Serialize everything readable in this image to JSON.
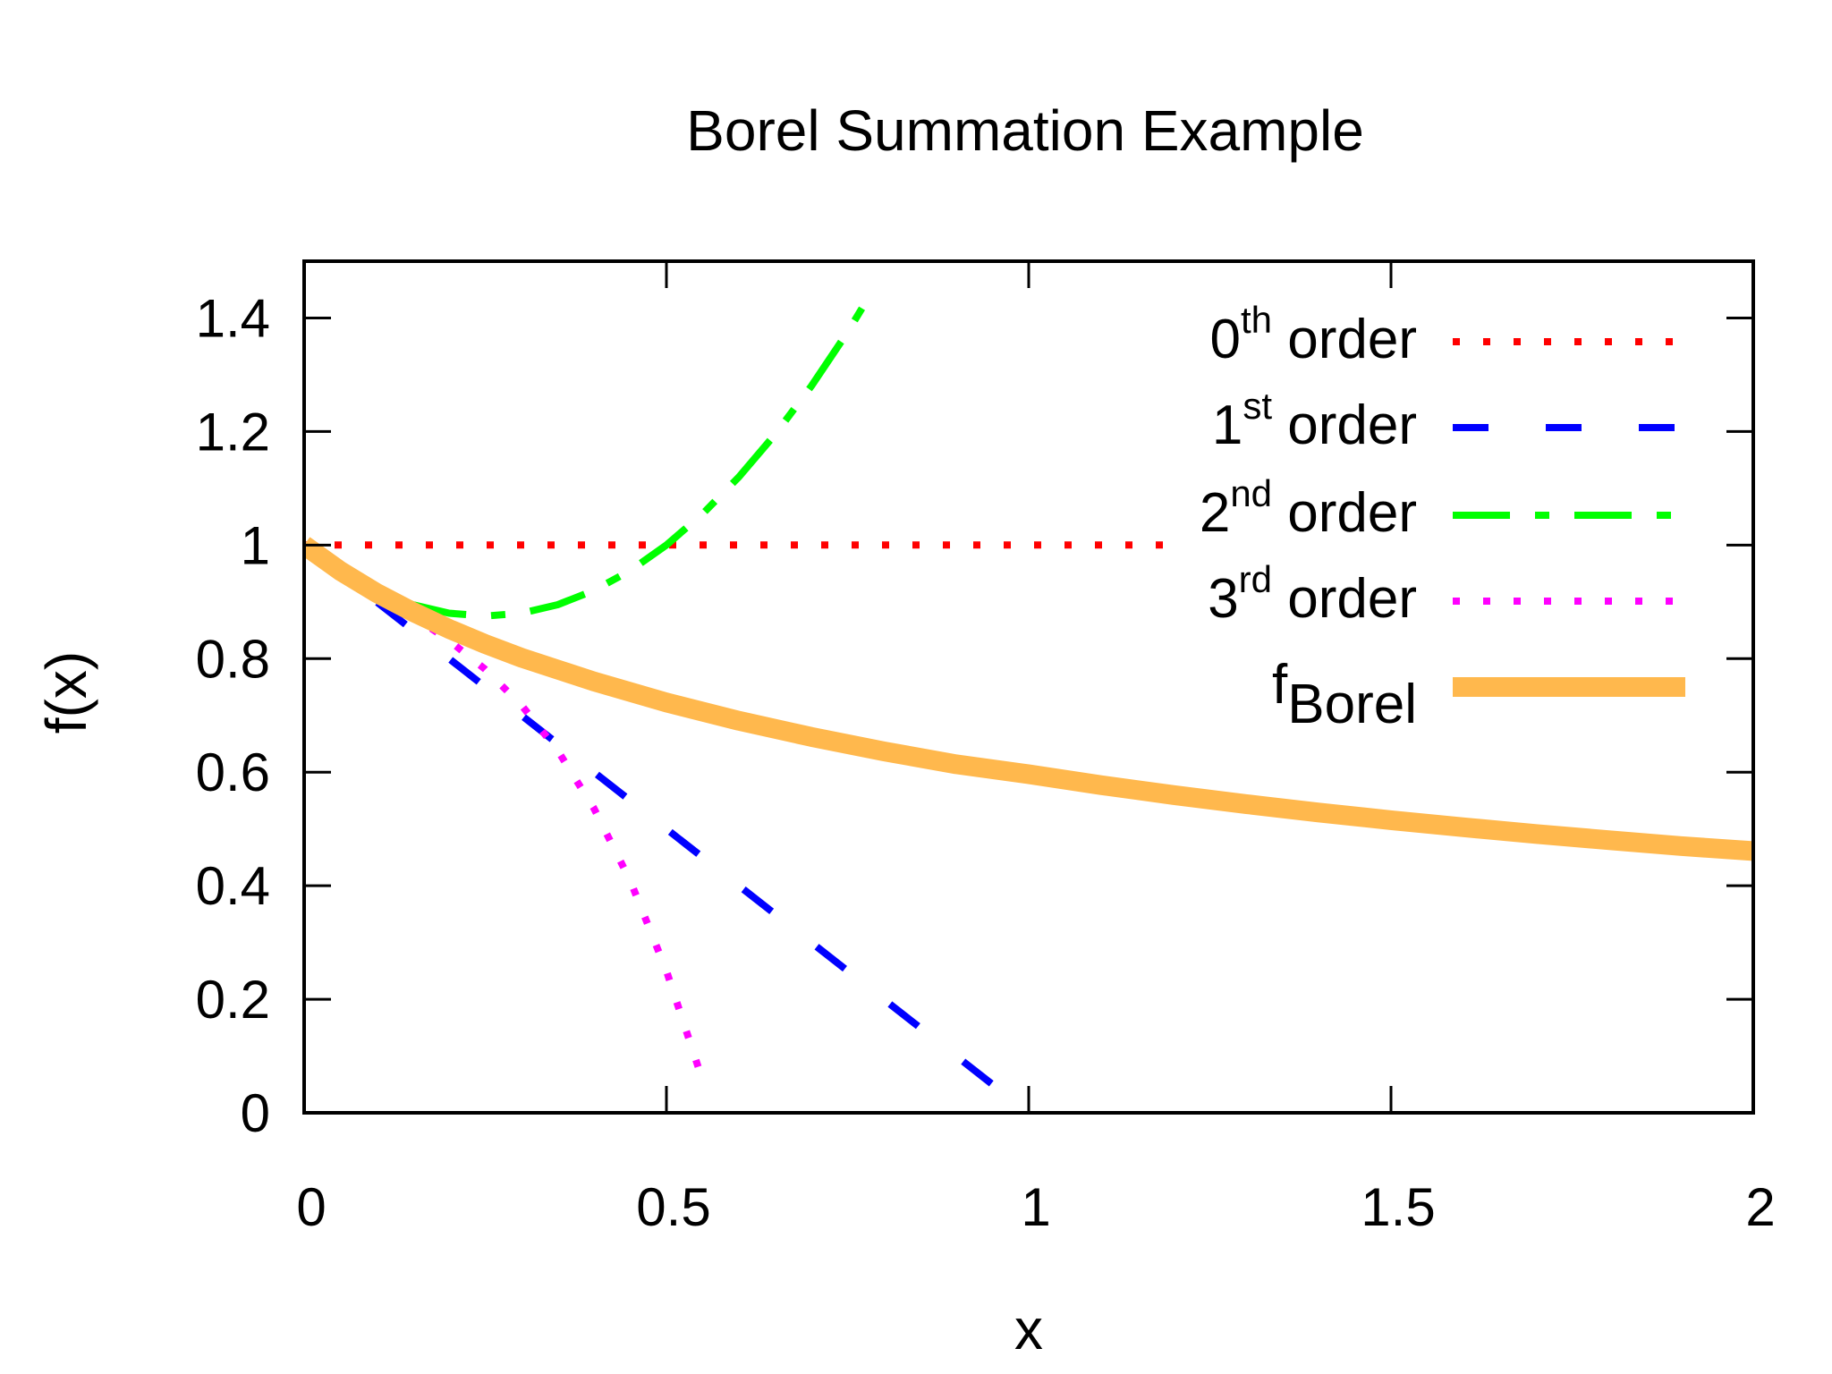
{
  "chart_data": {
    "type": "line",
    "title": "Borel Summation Example",
    "xlabel": "x",
    "ylabel": "f(x)",
    "xlim": [
      0,
      2
    ],
    "ylim": [
      0,
      1.5
    ],
    "xticks": [
      "0",
      "0.5",
      "1",
      "1.5",
      "2"
    ],
    "yticks": [
      "0",
      "0.2",
      "0.4",
      "0.6",
      "0.8",
      "1",
      "1.2",
      "1.4"
    ],
    "grid": false,
    "legend_placement": "top-right",
    "series": [
      {
        "name": "0th order",
        "label_base": "0",
        "label_sup": "th",
        "label_sub": "",
        "label_rest": " order",
        "color": "#ff0000",
        "style": "dotted",
        "x": [
          0,
          1.2
        ],
        "y": [
          1,
          1
        ]
      },
      {
        "name": "1st order",
        "label_base": "1",
        "label_sup": "st",
        "label_sub": "",
        "label_rest": " order",
        "color": "#0000ff",
        "style": "dashed",
        "x": [
          0,
          0.95
        ],
        "y": [
          1,
          0.05
        ]
      },
      {
        "name": "2nd order",
        "label_base": "2",
        "label_sup": "nd",
        "label_sub": "",
        "label_rest": " order",
        "color": "#00ff00",
        "style": "dashdot",
        "x": [
          0,
          0.05,
          0.1,
          0.15,
          0.2,
          0.25,
          0.3,
          0.35,
          0.4,
          0.45,
          0.5,
          0.55,
          0.6,
          0.65,
          0.7,
          0.75,
          0.78
        ],
        "y": [
          1,
          0.955,
          0.92,
          0.895,
          0.88,
          0.875,
          0.88,
          0.895,
          0.92,
          0.955,
          1,
          1.055,
          1.12,
          1.195,
          1.28,
          1.375,
          1.4384
        ]
      },
      {
        "name": "3rd order",
        "label_base": "3",
        "label_sup": "rd",
        "label_sub": "",
        "label_rest": " order",
        "color": "#ff00ff",
        "style": "dotted",
        "x": [
          0,
          0.05,
          0.1,
          0.15,
          0.2,
          0.25,
          0.3,
          0.35,
          0.4,
          0.45,
          0.5,
          0.55
        ],
        "y": [
          1,
          0.955,
          0.914,
          0.875,
          0.832,
          0.781,
          0.718,
          0.638,
          0.536,
          0.409,
          0.25,
          0.057
        ]
      },
      {
        "name": "fBorel",
        "label_base": "f",
        "label_sup": "",
        "label_sub": "Borel",
        "label_rest": "",
        "color": "#ffb84d",
        "style": "solid",
        "x": [
          0,
          0.05,
          0.1,
          0.15,
          0.2,
          0.25,
          0.3,
          0.4,
          0.5,
          0.6,
          0.7,
          0.8,
          0.9,
          1.0,
          1.1,
          1.2,
          1.3,
          1.4,
          1.5,
          1.6,
          1.7,
          1.8,
          1.9,
          2.0
        ],
        "y": [
          1,
          0.9543,
          0.9156,
          0.8823,
          0.8522,
          0.8257,
          0.8015,
          0.7597,
          0.7227,
          0.6905,
          0.6621,
          0.6367,
          0.6139,
          0.5963,
          0.5771,
          0.5597,
          0.5437,
          0.529,
          0.5154,
          0.5029,
          0.4912,
          0.4802,
          0.4699,
          0.461
        ]
      }
    ]
  }
}
